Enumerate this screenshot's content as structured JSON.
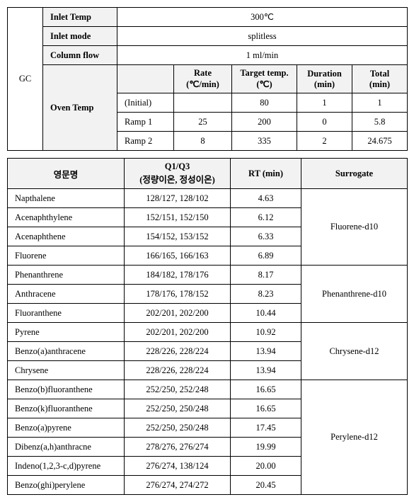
{
  "gc": {
    "section": "GC",
    "inlet_temp_label": "Inlet Temp",
    "inlet_temp_value": "300℃",
    "inlet_mode_label": "Inlet mode",
    "inlet_mode_value": "splitless",
    "column_flow_label": "Column flow",
    "column_flow_value": "1 ml/min",
    "oven_temp_label": "Oven Temp",
    "oven_headers": {
      "blank": "",
      "rate": "Rate\n(℃/min)",
      "target": "Target temp.\n(℃)",
      "duration": "Duration\n(min)",
      "total": "Total\n(min)"
    },
    "oven_rows": [
      {
        "name": "(Initial)",
        "rate": "",
        "target": "80",
        "duration": "1",
        "total": "1"
      },
      {
        "name": "Ramp 1",
        "rate": "25",
        "target": "200",
        "duration": "0",
        "total": "5.8"
      },
      {
        "name": "Ramp 2",
        "rate": "8",
        "target": "335",
        "duration": "2",
        "total": "24.675"
      }
    ]
  },
  "compounds": {
    "headers": {
      "name": "영문명",
      "q": "Q1/Q3\n(정량이온, 정성이온)",
      "rt": "RT (min)",
      "surrogate": "Surrogate"
    },
    "rows": [
      {
        "name": "Napthalene",
        "q": "128/127, 128/102",
        "rt": "4.63"
      },
      {
        "name": "Acenaphthylene",
        "q": "152/151, 152/150",
        "rt": "6.12"
      },
      {
        "name": "Acenaphthene",
        "q": "154/152, 153/152",
        "rt": "6.33"
      },
      {
        "name": "Fluorene",
        "q": "166/165, 166/163",
        "rt": "6.89"
      },
      {
        "name": "Phenanthrene",
        "q": "184/182, 178/176",
        "rt": "8.17"
      },
      {
        "name": "Anthracene",
        "q": "178/176, 178/152",
        "rt": "8.23"
      },
      {
        "name": "Fluoranthene",
        "q": "202/201, 202/200",
        "rt": "10.44"
      },
      {
        "name": "Pyrene",
        "q": "202/201, 202/200",
        "rt": "10.92"
      },
      {
        "name": "Benzo(a)anthracene",
        "q": "228/226, 228/224",
        "rt": "13.94"
      },
      {
        "name": "Chrysene",
        "q": "228/226, 228/224",
        "rt": "13.94"
      },
      {
        "name": "Benzo(b)fluoranthene",
        "q": "252/250, 252/248",
        "rt": "16.65"
      },
      {
        "name": "Benzo(k)fluoranthene",
        "q": "252/250, 250/248",
        "rt": "16.65"
      },
      {
        "name": "Benzo(a)pyrene",
        "q": "252/250, 250/248",
        "rt": "17.45"
      },
      {
        "name": "Dibenz(a,h)anthracne",
        "q": "278/276, 276/274",
        "rt": "19.99"
      },
      {
        "name": "Indeno(1,2,3-c,d)pyrene",
        "q": "276/274, 138/124",
        "rt": "20.00"
      },
      {
        "name": "Benzo(ghi)perylene",
        "q": "276/274, 274/272",
        "rt": "20.45"
      }
    ],
    "surrogates": [
      {
        "label": "Fluorene-d10",
        "span": 4
      },
      {
        "label": "Phenanthrene-d10",
        "span": 3
      },
      {
        "label": "Chrysene-d12",
        "span": 3
      },
      {
        "label": "Perylene-d12",
        "span": 6
      }
    ]
  }
}
